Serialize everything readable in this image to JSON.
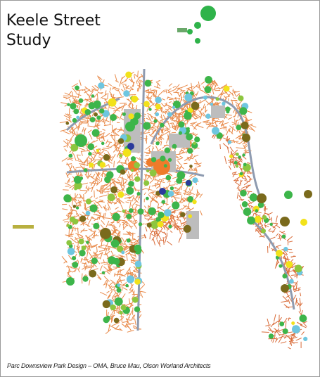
{
  "header": {
    "title_lines": [
      "Keele Street",
      "Study"
    ]
  },
  "caption": "Parc Downsview Park Design – OMA, Bruce Mau, Olson Worland Architects"
}
